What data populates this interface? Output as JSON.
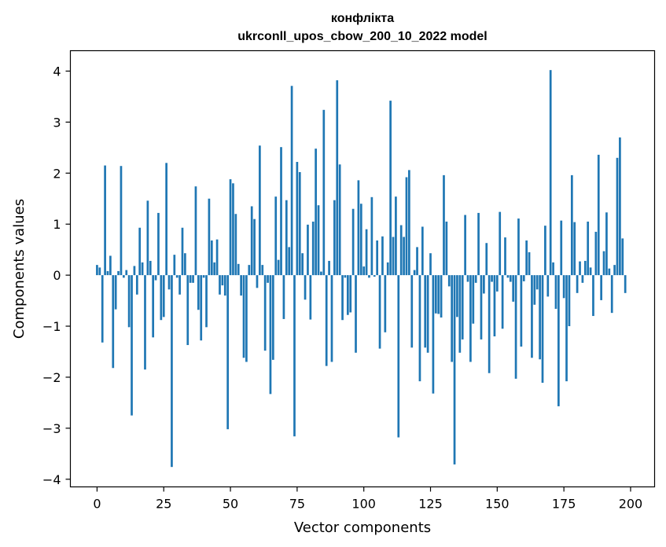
{
  "chart_data": {
    "type": "bar",
    "title": "конфлікта",
    "subtitle": "ukrconll_upos_cbow_200_10_2022 model",
    "xlabel": "Vector components",
    "ylabel": "Components values",
    "xlim": [
      -10,
      209
    ],
    "ylim": [
      -4.15,
      4.4
    ],
    "x_ticks": [
      0,
      25,
      50,
      75,
      100,
      125,
      150,
      175,
      200
    ],
    "y_ticks": [
      -4,
      -3,
      -2,
      -1,
      0,
      1,
      2,
      3,
      4
    ],
    "x_tick_labels": [
      "0",
      "25",
      "50",
      "75",
      "100",
      "125",
      "150",
      "175",
      "200"
    ],
    "y_tick_labels": [
      "−4",
      "−3",
      "−2",
      "−1",
      "0",
      "1",
      "2",
      "3",
      "4"
    ],
    "grid": false,
    "bar_color": "#1f77b4",
    "values": [
      0.2,
      0.15,
      -1.32,
      2.15,
      0.08,
      0.38,
      -1.82,
      -0.67,
      0.08,
      2.14,
      -0.05,
      0.1,
      -1.02,
      -2.75,
      0.18,
      -0.38,
      0.93,
      0.25,
      -1.85,
      1.46,
      0.28,
      -1.22,
      -0.1,
      1.22,
      -0.88,
      -0.82,
      2.2,
      -0.28,
      -3.76,
      0.4,
      -0.05,
      -0.38,
      0.93,
      0.43,
      -1.37,
      -0.15,
      -0.15,
      1.74,
      -0.68,
      -1.28,
      -0.05,
      -1.02,
      1.5,
      0.68,
      0.25,
      0.7,
      -0.38,
      -0.2,
      -0.4,
      -3.02,
      1.88,
      1.8,
      1.2,
      0.22,
      -0.4,
      -1.62,
      -1.7,
      0.2,
      1.35,
      1.1,
      -0.25,
      2.54,
      0.2,
      -1.48,
      -0.15,
      -2.33,
      -1.66,
      1.54,
      0.3,
      2.51,
      -0.86,
      1.47,
      0.55,
      3.71,
      -3.16,
      2.22,
      2.02,
      0.43,
      -0.48,
      0.99,
      -0.87,
      1.05,
      2.48,
      1.37,
      0.07,
      3.24,
      -1.78,
      0.28,
      -1.7,
      1.47,
      3.82,
      2.17,
      -0.88,
      -0.05,
      -0.78,
      -0.73,
      1.3,
      -1.52,
      1.86,
      1.4,
      0.17,
      0.9,
      -0.05,
      1.53,
      -0.03,
      0.68,
      -1.44,
      0.76,
      -1.12,
      0.25,
      3.42,
      0.75,
      1.54,
      -3.18,
      0.98,
      0.75,
      1.92,
      2.06,
      -1.42,
      0.1,
      0.55,
      -2.08,
      0.95,
      -1.42,
      -1.52,
      0.43,
      -2.32,
      -0.75,
      -0.76,
      -0.83,
      1.96,
      1.05,
      -0.22,
      -1.7,
      -3.71,
      -0.82,
      -1.52,
      -1.26,
      1.18,
      -0.13,
      -1.7,
      -0.95,
      -0.15,
      1.22,
      -1.26,
      -0.36,
      0.63,
      -1.92,
      -0.13,
      -1.2,
      -0.32,
      1.24,
      -1.05,
      0.74,
      -0.05,
      -0.13,
      -0.52,
      -2.03,
      1.11,
      -1.4,
      -0.12,
      0.68,
      0.45,
      -1.62,
      -0.58,
      -0.28,
      -1.65,
      -2.11,
      0.97,
      -0.42,
      4.02,
      0.25,
      -0.66,
      -2.57,
      1.07,
      -0.45,
      -2.08,
      -1.0,
      1.96,
      1.04,
      -0.35,
      0.27,
      -0.15,
      0.28,
      1.05,
      0.15,
      -0.8,
      0.85,
      2.36,
      -0.49,
      0.47,
      1.23,
      0.13,
      -0.74,
      0.2,
      2.3,
      2.7,
      0.72,
      -0.35
    ]
  }
}
